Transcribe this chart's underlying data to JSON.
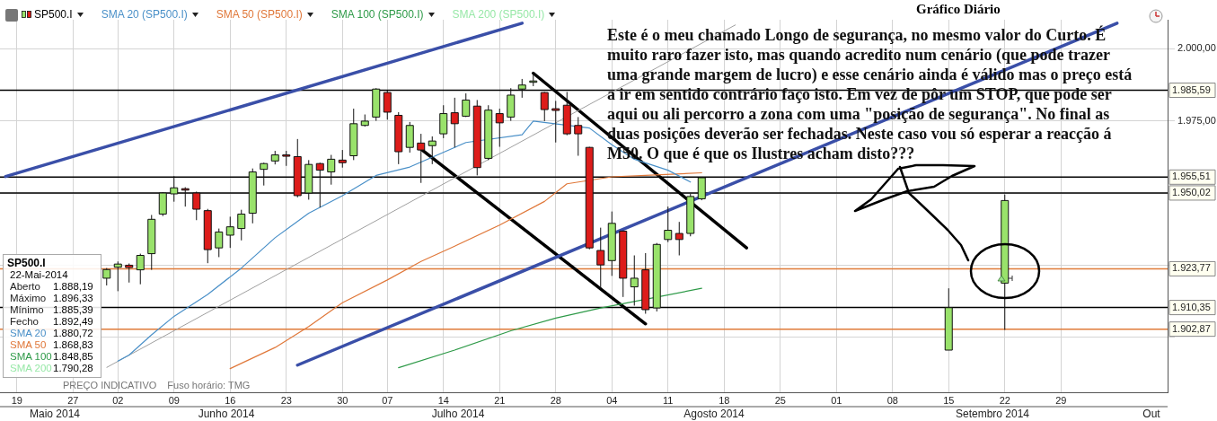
{
  "chart_data": {
    "type": "candlestick",
    "title": "Gráfico Diário",
    "categories": [
      null,
      "19",
      null,
      null,
      null,
      null,
      "27",
      null,
      null,
      null,
      "02",
      null,
      null,
      null,
      null,
      "09",
      null,
      null,
      null,
      null,
      "16",
      null,
      null,
      null,
      null,
      "23",
      null,
      null,
      null,
      null,
      "30",
      null,
      null,
      null,
      "07",
      null,
      null,
      null,
      null,
      "14",
      null,
      null,
      null,
      null,
      "21",
      null,
      null,
      null,
      null,
      "28",
      null,
      null,
      null,
      null,
      "04",
      null,
      null,
      null,
      null,
      "11",
      null,
      null,
      null,
      null,
      "18",
      null,
      null,
      null,
      null,
      "25",
      null,
      null,
      null,
      null,
      "01",
      null,
      null,
      null,
      null,
      "08",
      null,
      null,
      null,
      null,
      "15",
      null,
      null,
      null,
      null,
      "22",
      null,
      null,
      null,
      null,
      "29",
      null,
      null,
      null,
      null,
      null,
      null,
      null,
      null,
      null
    ],
    "ylim": [
      1881,
      2010
    ],
    "yticks": [
      {
        "value": 1900,
        "label": null
      },
      {
        "value": 1925,
        "label": null
      },
      {
        "value": 1950,
        "label": null
      },
      {
        "value": 1975,
        "label": "1.975,00"
      },
      {
        "value": 2000,
        "label": "2.000,00"
      }
    ],
    "grid": true,
    "legend": "top left",
    "series": [
      {
        "name": "SP500.I",
        "ohlc": [
          null,
          null,
          null,
          null,
          null,
          null,
          null,
          null,
          null,
          [
            1920.5,
            1924,
            1918,
            1923.5
          ],
          [
            1924.3,
            1926.3,
            1916,
            1925.4
          ],
          [
            1925,
            1925.6,
            1919,
            1924.2
          ],
          [
            1923.4,
            1929,
            1918.4,
            1928.4
          ],
          [
            1929,
            1942.4,
            1923.4,
            1940.9
          ],
          [
            1942.7,
            1950.3,
            1942,
            1950
          ],
          [
            1949.7,
            1955.8,
            1947,
            1951.8
          ],
          [
            1951.5,
            1952,
            1945.3,
            1951
          ],
          [
            1950,
            1950.5,
            1940.6,
            1944.4
          ],
          [
            1943.9,
            1944.5,
            1925.7,
            1930.4
          ],
          [
            1931,
            1937.7,
            1927.8,
            1936.5
          ],
          [
            1935.4,
            1941.8,
            1931,
            1938.3
          ],
          [
            1937.7,
            1944.2,
            1933.6,
            1942.7
          ],
          [
            1943,
            1958.5,
            1939.5,
            1957.3
          ],
          [
            1958.2,
            1960.5,
            1952.6,
            1960.2
          ],
          [
            1961.1,
            1964.6,
            1959.9,
            1963.2
          ],
          [
            1963.2,
            1964.6,
            1959.4,
            1963
          ],
          [
            1962.6,
            1968.7,
            1948.5,
            1949.1
          ],
          [
            1950,
            1961.4,
            1947.7,
            1959.9
          ],
          [
            1960.2,
            1960.5,
            1945,
            1957.9
          ],
          [
            1957.3,
            1963.2,
            1952.9,
            1961.7
          ],
          [
            1961.4,
            1964.9,
            1958.8,
            1960.5
          ],
          [
            1962.9,
            1979.2,
            1961.4,
            1974
          ],
          [
            1973.4,
            1977.2,
            1973,
            1974.9
          ],
          [
            1976.3,
            1986.3,
            1975,
            1986
          ],
          [
            1984.8,
            1985.5,
            1975.4,
            1978
          ],
          [
            1976.9,
            1978,
            1960,
            1964.3
          ],
          [
            1965.8,
            1974.6,
            1964,
            1973.4
          ],
          [
            1967.3,
            1970.5,
            1953.5,
            1964.9
          ],
          [
            1966.4,
            1969.6,
            1960,
            1968
          ],
          [
            1970.5,
            1980.4,
            1969,
            1977.5
          ],
          [
            1977.8,
            1983,
            1965.8,
            1974
          ],
          [
            1976.6,
            1984.5,
            1976.3,
            1982.2
          ],
          [
            1980.1,
            1982.2,
            1956.1,
            1958.8
          ],
          [
            1962,
            1980.4,
            1961.4,
            1978.7
          ],
          [
            1977.5,
            1979.2,
            1966,
            1974.3
          ],
          [
            1976.3,
            1986.3,
            1975,
            1983.9
          ],
          [
            1986,
            1989.5,
            1983,
            1987.4
          ],
          [
            1988.4,
            1991.5,
            1987,
            1988.8
          ],
          [
            1984.8,
            1985,
            1974.9,
            1978.9
          ],
          [
            1979.2,
            1981.9,
            1967.5,
            1978.6
          ],
          [
            1980.4,
            1985,
            1970,
            1970.5
          ],
          [
            1973.4,
            1976.3,
            1962.9,
            1970.5
          ],
          [
            1965.8,
            1966,
            1930.5,
            1931
          ],
          [
            1930.1,
            1938,
            1917,
            1925.1
          ],
          [
            1926.6,
            1943.6,
            1921.3,
            1939.5
          ],
          [
            1936.8,
            1937,
            1914,
            1920.5
          ],
          [
            1917.5,
            1928.4,
            1911,
            1920.5
          ],
          [
            1923.4,
            1929.2,
            1908.2,
            1909.6
          ],
          [
            1910.2,
            1932.7,
            1909,
            1932.2
          ],
          [
            1933.9,
            1945.3,
            1933,
            1937.1
          ],
          [
            1936,
            1940,
            1928.4,
            1933.9
          ],
          [
            1936,
            1949.7,
            1935,
            1948.8
          ],
          [
            1948,
            1955.5,
            1947.5,
            1955.3
          ],
          null,
          null,
          null,
          null,
          null,
          null,
          null,
          null,
          null,
          null,
          null,
          null,
          null,
          null,
          null,
          null,
          null,
          null,
          null,
          null,
          null,
          [
            1895.6,
            1917,
            1895.6,
            1910.3
          ],
          null,
          null,
          null,
          null,
          [
            1918.8,
            1949.5,
            1902.6,
            1947.4
          ],
          null,
          null,
          null,
          null,
          null,
          null,
          null,
          null,
          null,
          null,
          null,
          null,
          null,
          null
        ]
      },
      {
        "name": "SMA 20 (SP500.I)",
        "type": "line",
        "color": "#4a90c8",
        "values": [
          null,
          null,
          null,
          null,
          null,
          null,
          null,
          null,
          null,
          null,
          1891.8,
          1893.9,
          null,
          1900.9,
          null,
          1907.3,
          null,
          null,
          1914.9,
          null,
          null,
          1924,
          null,
          null,
          1934.5,
          null,
          null,
          1943,
          null,
          null,
          1949.1,
          null,
          null,
          1956.1,
          null,
          null,
          1959,
          null,
          null,
          null,
          null,
          1967.5,
          null,
          null,
          null,
          null,
          1970.2,
          1974.9,
          null,
          null,
          null,
          null,
          1972.5,
          null,
          1966.7,
          null,
          1961.7,
          null,
          null,
          1957.9,
          null,
          1953.8,
          null,
          null,
          null,
          null,
          null,
          null,
          null,
          null,
          null,
          null,
          null,
          null,
          null,
          null,
          null,
          null,
          null,
          null,
          null,
          null,
          null,
          null,
          null,
          null,
          null,
          null,
          null,
          null,
          null,
          null,
          null,
          null,
          null,
          null,
          null,
          null,
          null,
          null,
          null,
          null,
          null,
          null
        ]
      },
      {
        "name": "SMA 50 (SP500.I)",
        "type": "line",
        "color": "#e0783a",
        "values": [
          null,
          null,
          null,
          null,
          null,
          null,
          null,
          null,
          null,
          null,
          null,
          null,
          null,
          null,
          null,
          null,
          null,
          null,
          null,
          null,
          1889.2,
          null,
          null,
          null,
          1896.5,
          null,
          null,
          1903.8,
          null,
          null,
          1912,
          null,
          null,
          null,
          1919.9,
          null,
          null,
          1926.3,
          null,
          null,
          1931.6,
          null,
          null,
          null,
          1938.9,
          null,
          null,
          null,
          1947.1,
          null,
          1953.2,
          null,
          null,
          null,
          1955.6,
          null,
          null,
          1956.1,
          null,
          null,
          null,
          null,
          1957,
          null,
          null,
          null,
          null,
          null,
          null,
          null,
          null,
          null,
          null,
          null,
          null,
          null,
          null,
          null,
          null,
          null,
          null,
          null,
          null,
          null,
          null,
          null,
          null,
          null,
          null,
          null,
          null,
          null,
          null,
          null,
          null,
          null,
          null,
          null,
          null,
          null,
          null,
          null,
          null,
          null
        ]
      },
      {
        "name": "SMA 100 (SP500.I)",
        "type": "line",
        "color": "#2e9a48",
        "values": [
          null,
          null,
          null,
          null,
          null,
          null,
          null,
          null,
          null,
          null,
          null,
          null,
          null,
          null,
          null,
          null,
          null,
          null,
          null,
          null,
          null,
          null,
          null,
          null,
          null,
          null,
          null,
          null,
          null,
          null,
          null,
          null,
          null,
          null,
          null,
          1889.5,
          null,
          null,
          null,
          null,
          1895.6,
          null,
          null,
          null,
          null,
          1902.3,
          null,
          null,
          null,
          1906.7,
          null,
          null,
          null,
          1910.2,
          null,
          null,
          null,
          null,
          null,
          null,
          null,
          null,
          1917,
          null,
          null,
          null,
          null,
          null,
          null,
          null,
          null,
          null,
          null,
          null,
          null,
          null,
          null,
          null,
          null,
          null,
          null,
          null,
          null,
          null,
          null,
          null,
          null,
          null,
          null,
          null,
          null,
          null,
          null,
          null,
          null,
          null,
          null,
          null,
          null,
          null,
          null,
          null,
          null,
          null
        ]
      },
      {
        "type": "line",
        "color": "#a0a0a0",
        "values": [
          null,
          null,
          null,
          null,
          null,
          null,
          null,
          null,
          null,
          1889.6,
          null,
          null,
          null,
          null,
          null,
          null,
          null,
          null,
          null,
          null,
          null,
          null,
          null,
          null,
          null,
          null,
          null,
          null,
          null,
          null,
          null,
          null,
          null,
          null,
          null,
          null,
          null,
          null,
          null,
          null,
          null,
          null,
          null,
          null,
          null,
          null,
          null,
          null,
          null,
          null,
          null,
          null,
          null,
          null,
          null,
          null,
          null,
          null,
          null,
          null,
          null,
          null,
          null,
          null,
          null,
          2008.2,
          null,
          null,
          null,
          null,
          null,
          null,
          null,
          null,
          null,
          null,
          null,
          null,
          null,
          null,
          null,
          null,
          null,
          null,
          null,
          null,
          null,
          null,
          null,
          null,
          null,
          null,
          null,
          null,
          null,
          null,
          null,
          null,
          null,
          null,
          null,
          null,
          null,
          null
        ]
      },
      {
        "type": "line",
        "color": "#3a4fa8",
        "values": [
          1955.7,
          null,
          null,
          null,
          null,
          null,
          null,
          null,
          null,
          null,
          null,
          null,
          null,
          null,
          null,
          null,
          null,
          null,
          null,
          null,
          null,
          null,
          null,
          null,
          null,
          null,
          null,
          null,
          null,
          null,
          null,
          null,
          null,
          null,
          null,
          null,
          null,
          null,
          null,
          null,
          null,
          null,
          null,
          null,
          null,
          null,
          2008.8,
          null,
          null,
          null,
          null,
          null,
          null,
          null,
          null,
          null,
          null,
          null,
          null,
          null,
          null,
          null,
          null,
          null,
          null,
          null,
          null,
          null,
          null,
          null,
          null,
          null,
          null,
          null,
          null,
          null,
          null,
          null,
          null,
          null,
          null,
          null,
          null,
          null,
          null,
          null,
          null,
          null,
          null,
          null,
          null,
          null,
          null,
          null,
          null,
          null,
          null,
          null,
          null,
          null,
          null,
          null,
          null,
          null
        ]
      },
      {
        "type": "line",
        "color": "#3a4fa8",
        "values": [
          null,
          null,
          null,
          null,
          null,
          null,
          null,
          null,
          null,
          null,
          null,
          null,
          null,
          null,
          null,
          null,
          null,
          null,
          null,
          null,
          null,
          null,
          null,
          null,
          null,
          null,
          1890.4,
          null,
          null,
          null,
          null,
          null,
          null,
          null,
          null,
          null,
          null,
          null,
          null,
          null,
          null,
          null,
          null,
          null,
          null,
          null,
          null,
          null,
          null,
          null,
          null,
          null,
          null,
          null,
          null,
          null,
          null,
          null,
          null,
          null,
          null,
          null,
          null,
          null,
          null,
          null,
          null,
          null,
          null,
          null,
          null,
          null,
          null,
          null,
          null,
          null,
          null,
          null,
          null,
          null,
          null,
          null,
          null,
          null,
          null,
          null,
          null,
          null,
          null,
          null,
          null,
          null,
          null,
          null,
          null,
          null,
          null,
          null,
          null,
          2008.8,
          null,
          null,
          null,
          null
        ]
      },
      {
        "type": "line",
        "color": "#000000",
        "values": [
          null,
          null,
          null,
          null,
          null,
          null,
          null,
          null,
          null,
          null,
          null,
          null,
          null,
          null,
          null,
          null,
          null,
          null,
          null,
          null,
          null,
          null,
          null,
          null,
          null,
          null,
          null,
          null,
          null,
          null,
          null,
          null,
          null,
          null,
          null,
          null,
          null,
          null,
          null,
          null,
          null,
          null,
          null,
          null,
          null,
          null,
          null,
          1991.5,
          null,
          null,
          null,
          null,
          null,
          null,
          null,
          null,
          null,
          null,
          null,
          null,
          null,
          null,
          null,
          null,
          null,
          null,
          1931,
          null,
          null,
          null,
          null,
          null,
          null,
          null,
          null,
          null,
          null,
          null,
          null,
          null,
          null,
          null,
          null,
          null,
          null,
          null,
          null,
          null,
          null,
          null,
          null,
          null,
          null,
          null,
          null,
          null,
          null,
          null,
          null,
          null,
          null,
          null,
          null,
          null
        ]
      },
      {
        "type": "line",
        "color": "#000000",
        "values": [
          null,
          null,
          null,
          null,
          null,
          null,
          null,
          null,
          null,
          null,
          null,
          null,
          null,
          null,
          null,
          null,
          null,
          null,
          null,
          null,
          null,
          null,
          null,
          null,
          null,
          null,
          null,
          null,
          null,
          null,
          null,
          null,
          null,
          null,
          null,
          null,
          null,
          1965.2,
          null,
          null,
          null,
          null,
          null,
          null,
          null,
          null,
          null,
          null,
          null,
          null,
          null,
          null,
          null,
          null,
          null,
          null,
          null,
          1904.7,
          null,
          null,
          null,
          null,
          null,
          null,
          null,
          null,
          null,
          null,
          null,
          null,
          null,
          null,
          null,
          null,
          null,
          null,
          null,
          null,
          null,
          null,
          null,
          null,
          null,
          null,
          null,
          null,
          null,
          null,
          null,
          null,
          null,
          null,
          null,
          null,
          null,
          null,
          null,
          null,
          null,
          null,
          null,
          null,
          null,
          null
        ]
      }
    ],
    "ref_lines": [
      {
        "axis": "y",
        "value": 1985.59,
        "label": "1.985,59",
        "color": "#000000"
      },
      {
        "axis": "y",
        "value": 1955.51,
        "label": "1.955,51",
        "color": "#000000"
      },
      {
        "axis": "y",
        "value": 1950.02,
        "label": "1.950,02",
        "color": "#000000"
      },
      {
        "axis": "y",
        "value": 1923.77,
        "label": "1.923,77",
        "color": "#e07b39"
      },
      {
        "axis": "y",
        "value": 1910.35,
        "label": "1.910,35",
        "color": "#000000"
      },
      {
        "axis": "y",
        "value": 1902.87,
        "label": "1.902,87",
        "color": "#e07b39"
      }
    ],
    "annotations": [
      "Este é o meu chamado Longo de segurança, no mesmo valor do Curto. É muito raro fazer isto, mas quando acredito num cenário (que pode trazer uma grande margem de lucro) e esse cenário ainda é válido mas o preço está a ir em sentido contrário faço isto. Em vez de pôr um STOP, que pode ser aqui ou ali percorro a zona com uma \"posição de segurança\". No final as duas posições deverão ser fechadas. Neste caso vou só esperar a reacção á M50. O que é que os Ilustres acham disto???",
      "PREÇO INDICATIVO",
      "Fuso horário: TMG",
      "SMA 200 (SP500.I)",
      "SP500.I",
      "22-Mai-2014",
      "Aberto",
      "1.888,19",
      "Máximo",
      "1.896,33",
      "Mínimo",
      "1.885,39",
      "Fecho",
      "1.892,49",
      "SMA 20",
      "1.880,72",
      "SMA 50",
      "1.868,83",
      "SMA 100",
      "1.848,85",
      "SMA 200",
      "1.790,28",
      "Maio 2014",
      "Junho 2014",
      "Julho 2014",
      "Agosto 2014",
      "Setembro 2014",
      "Out"
    ]
  }
}
